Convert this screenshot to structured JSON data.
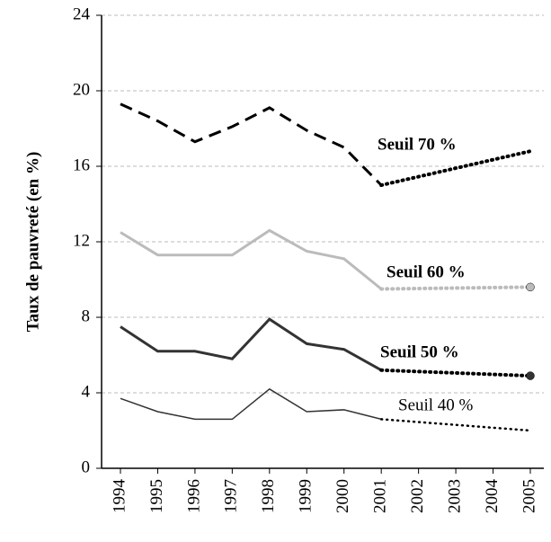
{
  "chart_data": {
    "type": "line",
    "y_label": "Taux de pauvreté (en %)",
    "x": [
      "1994",
      "1995",
      "1996",
      "1997",
      "1998",
      "1999",
      "2000",
      "2001",
      "2002",
      "2003",
      "2004",
      "2005"
    ],
    "series": [
      {
        "name": "Seuil 70 %",
        "color": "#000000",
        "line_style": "dashed",
        "width": 3,
        "end_marker": false,
        "bold": true,
        "values": [
          19.3,
          18.4,
          17.3,
          18.1,
          19.1,
          17.9,
          17.0,
          15.0,
          null,
          null,
          null,
          16.8
        ]
      },
      {
        "name": "Seuil 60 %",
        "color": "#bbbbbb",
        "line_style": "solid",
        "width": 3,
        "end_marker": true,
        "bold": true,
        "values": [
          12.5,
          11.3,
          11.3,
          11.3,
          12.6,
          11.5,
          11.1,
          9.5,
          null,
          null,
          null,
          9.6
        ]
      },
      {
        "name": "Seuil 50 %",
        "color": "#333333",
        "line_style": "solid",
        "width": 3,
        "end_marker": true,
        "bold": true,
        "values": [
          7.5,
          6.2,
          6.2,
          5.8,
          7.9,
          6.6,
          6.3,
          5.2,
          null,
          null,
          null,
          4.9
        ]
      },
      {
        "name": "Seuil 40 %",
        "color": "#333333",
        "line_style": "solid",
        "width": 1.5,
        "end_marker": false,
        "bold": false,
        "values": [
          3.7,
          3.0,
          2.6,
          2.6,
          4.2,
          3.0,
          3.1,
          2.6,
          null,
          null,
          null,
          2.0
        ]
      }
    ],
    "ylim": [
      0,
      24
    ],
    "yticks": [
      0,
      4,
      8,
      12,
      16,
      20,
      24
    ],
    "grid": true
  }
}
